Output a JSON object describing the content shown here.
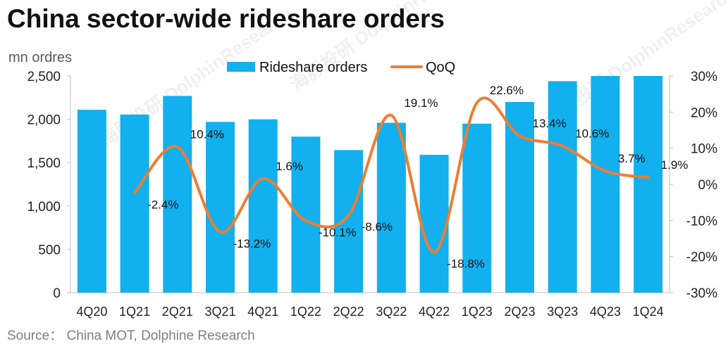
{
  "title": "China sector-wide rideshare orders",
  "source": "Source：  China MOT, Dolphine Research",
  "watermark": "海豚投研 DolphinResearch",
  "colors": {
    "bar": "#12B0EE",
    "line": "#ED7D31",
    "axis": "#BFBFBF"
  },
  "chart_data": {
    "type": "bar",
    "categories": [
      "4Q20",
      "1Q21",
      "2Q21",
      "3Q21",
      "4Q21",
      "1Q22",
      "2Q22",
      "3Q22",
      "4Q22",
      "1Q23",
      "2Q23",
      "3Q23",
      "4Q23",
      "1Q24"
    ],
    "y_unit_label": "mn ordres",
    "ylim": [
      0,
      2500
    ],
    "y_ticks": [
      "0",
      "500",
      "1,000",
      "1,500",
      "2,000",
      "2,500"
    ],
    "y2lim": [
      -30,
      30
    ],
    "y2_ticks": [
      "-30%",
      "-20%",
      "-10%",
      "0%",
      "10%",
      "20%",
      "30%"
    ],
    "legend": [
      "Rideshare orders",
      "QoQ"
    ],
    "legend_position": "top-center",
    "series": [
      {
        "name": "Rideshare orders",
        "type": "bar",
        "axis": "left",
        "values": [
          2110,
          2055,
          2270,
          1970,
          2000,
          1800,
          1645,
          1960,
          1590,
          1950,
          2200,
          2440,
          2500,
          2500
        ]
      },
      {
        "name": "QoQ",
        "type": "line",
        "axis": "right",
        "smooth": true,
        "values": [
          null,
          -2.4,
          10.4,
          -13.2,
          1.6,
          -10.1,
          -8.6,
          19.1,
          -18.8,
          22.6,
          13.4,
          10.6,
          3.7,
          1.9
        ],
        "labels": [
          "",
          "-2.4%",
          "10.4%",
          "-13.2%",
          "1.6%",
          "-10.1%",
          "-8.6%",
          "19.1%",
          "-18.8%",
          "22.6%",
          "13.4%",
          "10.6%",
          "3.7%",
          "1.9%"
        ]
      }
    ]
  }
}
